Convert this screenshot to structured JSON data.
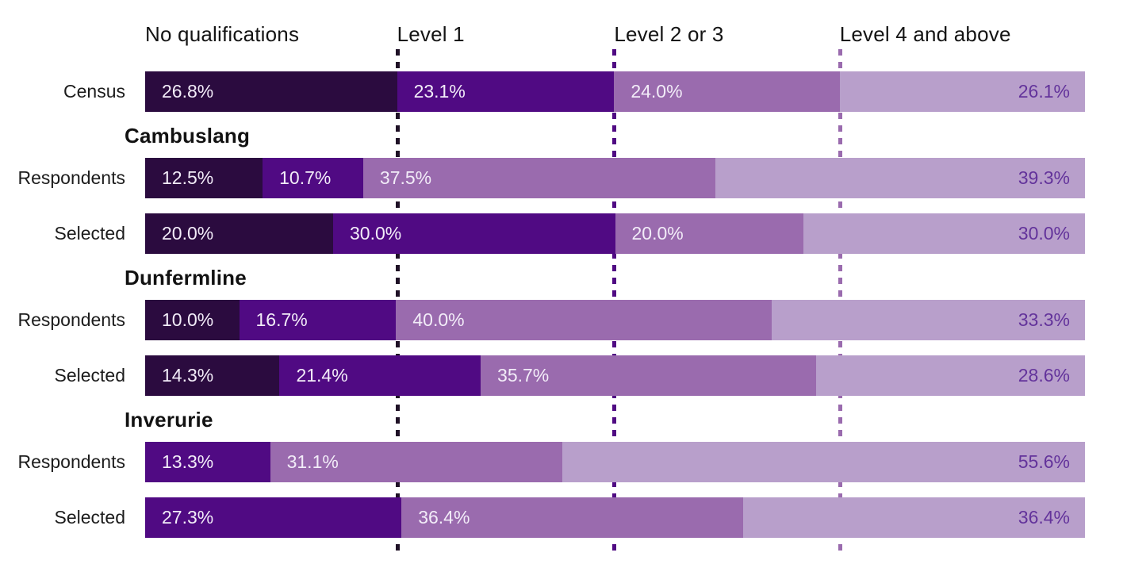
{
  "chart_data": {
    "type": "bar",
    "subtype": "horizontal-stacked-100",
    "unit": "%",
    "xlim": [
      0,
      100
    ],
    "grid": false,
    "legend_position": "top-category-headers",
    "categories": [
      "No qualifications",
      "Level 1",
      "Level 2 or 3",
      "Level 4 and above"
    ],
    "category_colors": [
      "#2b0b3f",
      "#500a83",
      "#9a6bae",
      "#b89fcb"
    ],
    "text_colors": {
      "on_segment": "#f2ecf8",
      "on_light_segment": "#63339b",
      "header": "#141414",
      "row_label": "#1c1c1c"
    },
    "reference_lines": [
      {
        "position": 26.8,
        "color": "#1f1126"
      },
      {
        "position": 49.9,
        "color": "#500a83"
      },
      {
        "position": 73.9,
        "color": "#9a6bae"
      }
    ],
    "rows": [
      {
        "type": "bar",
        "label": "Census",
        "values": [
          26.8,
          23.1,
          24.0,
          26.1
        ],
        "value_labels": [
          "26.8%",
          "23.1%",
          "24.0%",
          "26.1%"
        ]
      },
      {
        "type": "group",
        "label": "Cambuslang"
      },
      {
        "type": "bar",
        "label": "Respondents",
        "values": [
          12.5,
          10.7,
          37.5,
          39.3
        ],
        "value_labels": [
          "12.5%",
          "10.7%",
          "37.5%",
          "39.3%"
        ]
      },
      {
        "type": "bar",
        "label": "Selected",
        "values": [
          20.0,
          30.0,
          20.0,
          30.0
        ],
        "value_labels": [
          "20.0%",
          "30.0%",
          "20.0%",
          "30.0%"
        ]
      },
      {
        "type": "group",
        "label": "Dunfermline"
      },
      {
        "type": "bar",
        "label": "Respondents",
        "values": [
          10.0,
          16.7,
          40.0,
          33.3
        ],
        "value_labels": [
          "10.0%",
          "16.7%",
          "40.0%",
          "33.3%"
        ]
      },
      {
        "type": "bar",
        "label": "Selected",
        "values": [
          14.3,
          21.4,
          35.7,
          28.6
        ],
        "value_labels": [
          "14.3%",
          "21.4%",
          "35.7%",
          "28.6%"
        ]
      },
      {
        "type": "group",
        "label": "Inverurie"
      },
      {
        "type": "bar",
        "label": "Respondents",
        "values": [
          0,
          13.3,
          31.1,
          55.6
        ],
        "value_labels": [
          "",
          "13.3%",
          "31.1%",
          "55.6%"
        ]
      },
      {
        "type": "bar",
        "label": "Selected",
        "values": [
          0,
          27.3,
          36.4,
          36.4
        ],
        "value_labels": [
          "",
          "27.3%",
          "36.4%",
          "36.4%"
        ]
      }
    ]
  }
}
